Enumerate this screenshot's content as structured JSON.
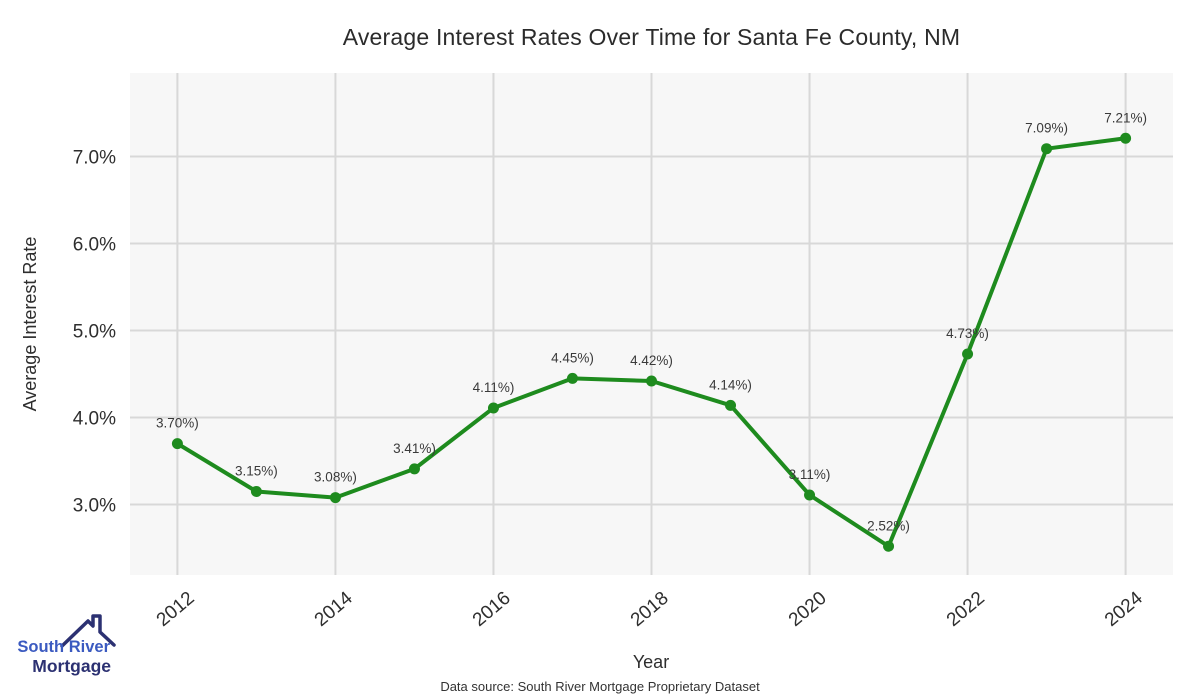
{
  "header": {
    "title": "Average Interest Rates Over Time for Santa Fe County, NM"
  },
  "footer": {
    "text": "Data source: South River Mortgage Proprietary Dataset"
  },
  "logo": {
    "icon": "house-roof-icon",
    "line1": "South River",
    "line2": "Mortgage",
    "color_primary": "#3b5ac0",
    "color_secondary": "#2c3172"
  },
  "chart_data": {
    "type": "line",
    "title": "Average Interest Rates Over Time for Santa Fe County, NM",
    "xlabel": "Year",
    "ylabel": "Average Interest Rate",
    "x": [
      2012,
      2013,
      2014,
      2015,
      2016,
      2017,
      2018,
      2019,
      2020,
      2021,
      2022,
      2023,
      2024
    ],
    "values": [
      3.7,
      3.15,
      3.08,
      3.41,
      4.11,
      4.45,
      4.42,
      4.14,
      3.11,
      2.52,
      4.73,
      7.09,
      7.21
    ],
    "point_labels": [
      "3.70%)",
      "3.15%)",
      "3.08%)",
      "3.41%)",
      "4.11%)",
      "4.45%)",
      "4.42%)",
      "4.14%)",
      "3.11%)",
      "2.52%)",
      "4.73%)",
      "7.09%)",
      "7.21%)"
    ],
    "x_ticks": [
      2012,
      2014,
      2016,
      2018,
      2020,
      2022,
      2024
    ],
    "y_ticks": [
      {
        "value": 3,
        "label": "3.0%"
      },
      {
        "value": 4,
        "label": "4.0%"
      },
      {
        "value": 5,
        "label": "5.0%"
      },
      {
        "value": 6,
        "label": "6.0%"
      },
      {
        "value": 7,
        "label": "7.0%"
      }
    ],
    "xlim": [
      2011.4,
      2024.6
    ],
    "ylim": [
      2.19,
      7.96
    ],
    "grid": true,
    "legend_position": "none",
    "line_color": "#1e8b1e",
    "marker_color": "#1e8b1e",
    "panel_bg": "#f7f7f7",
    "grid_color": "#d8d8d8"
  }
}
